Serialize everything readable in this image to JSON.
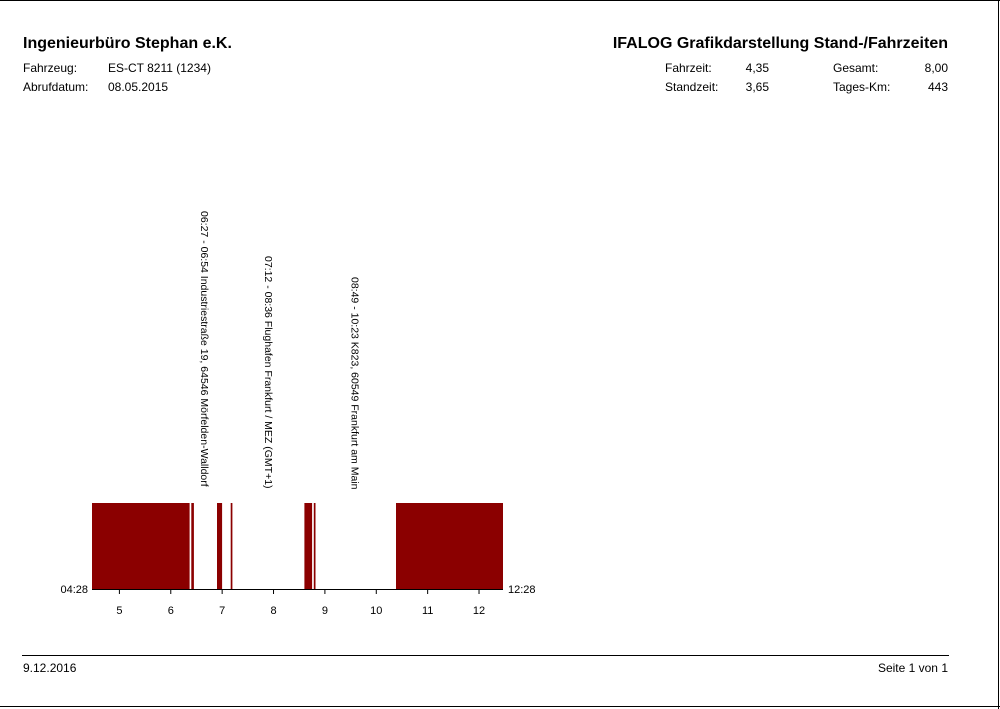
{
  "header": {
    "company": "Ingenieurbüro Stephan e.K.",
    "title": "IFALOG Grafikdarstellung Stand-/Fahrzeiten",
    "vehicle_label": "Fahrzeug:",
    "vehicle_value": "ES-CT 8211 (1234)",
    "date_label": "Abrufdatum:",
    "date_value": "08.05.2015",
    "drive_label": "Fahrzeit:",
    "drive_value": "4,35",
    "stand_label": "Standzeit:",
    "stand_value": "3,65",
    "total_label": "Gesamt:",
    "total_value": "8,00",
    "km_label": "Tages-Km:",
    "km_value": "443"
  },
  "chart_data": {
    "type": "bar",
    "title": "",
    "xlabel": "",
    "ylabel": "",
    "x_unit": "hour of day",
    "xlim_label_left": "04:28",
    "xlim_label_right": "12:28",
    "xlim": [
      "04:28",
      "12:28"
    ],
    "x_ticks": [
      5,
      6,
      7,
      8,
      9,
      10,
      11,
      12
    ],
    "bar_color": "#8b0000",
    "series": [
      {
        "values": [
          {
            "start": "04:28",
            "end": "06:22"
          },
          {
            "start": "06:24",
            "end": "06:27"
          },
          {
            "start": "06:54",
            "end": "07:00"
          },
          {
            "start": "07:10",
            "end": "07:12"
          },
          {
            "start": "08:36",
            "end": "08:45"
          },
          {
            "start": "08:47",
            "end": "08:49"
          },
          {
            "start": "10:23",
            "end": "12:28"
          }
        ]
      }
    ],
    "annotations": [
      {
        "time": "06:40",
        "text": "06:27 - 06:54  Industriestraße 19, 64546 Mörfelden-Walldorf"
      },
      {
        "time": "07:55",
        "text": "07:12 - 08:36  Flughafen Frankfurt / MEZ (GMT+1)"
      },
      {
        "time": "09:36",
        "text": "08:49 - 10:23  K823, 60549 Frankfurt am Main"
      }
    ]
  },
  "footer": {
    "print_date": "9.12.2016",
    "page": "Seite 1 von 1"
  }
}
